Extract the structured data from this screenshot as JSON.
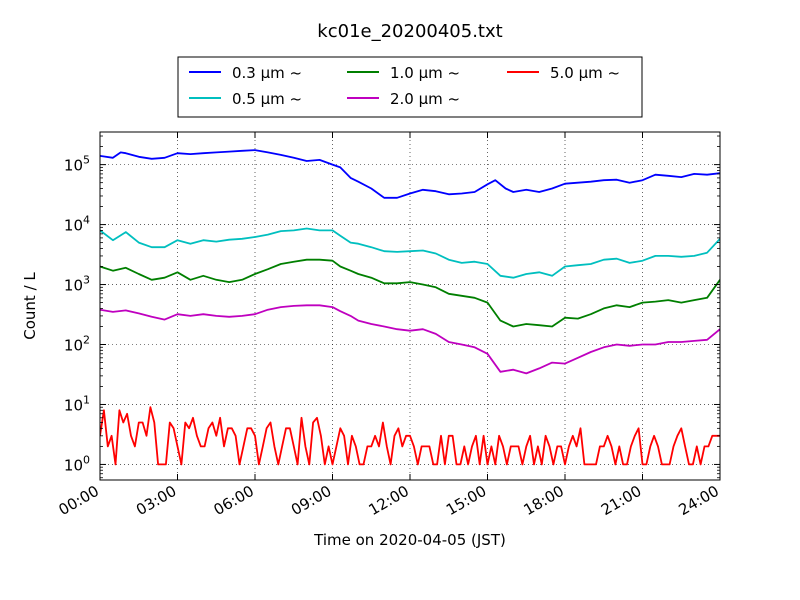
{
  "chart_data": {
    "type": "line",
    "title": "kc01e_20200405.txt",
    "xlabel": "Time on 2020-04-05 (JST)",
    "ylabel": "Count / L",
    "x_unit": "hours",
    "xlim": [
      0,
      24
    ],
    "ylim": [
      0.55,
      350000
    ],
    "yscale": "log",
    "grid": true,
    "legend_position": "top-center",
    "x_ticks": [
      {
        "value": 0,
        "label": "00:00"
      },
      {
        "value": 3,
        "label": "03:00"
      },
      {
        "value": 6,
        "label": "06:00"
      },
      {
        "value": 9,
        "label": "09:00"
      },
      {
        "value": 12,
        "label": "12:00"
      },
      {
        "value": 15,
        "label": "15:00"
      },
      {
        "value": 18,
        "label": "18:00"
      },
      {
        "value": 21,
        "label": "21:00"
      },
      {
        "value": 24,
        "label": "24:00"
      }
    ],
    "y_ticks": [
      {
        "value": 1,
        "base": "10",
        "exp": "0"
      },
      {
        "value": 10,
        "base": "10",
        "exp": "1"
      },
      {
        "value": 100,
        "base": "10",
        "exp": "2"
      },
      {
        "value": 1000,
        "base": "10",
        "exp": "3"
      },
      {
        "value": 10000,
        "base": "10",
        "exp": "4"
      },
      {
        "value": 100000,
        "base": "10",
        "exp": "5"
      }
    ],
    "series": [
      {
        "name": "0.3 μm ~",
        "color": "#0000ff",
        "x": [
          0,
          0.5,
          0.8,
          1,
          1.5,
          2,
          2.5,
          3,
          3.5,
          4,
          4.5,
          5,
          5.5,
          6,
          6.5,
          7,
          7.5,
          8,
          8.5,
          9,
          9.3,
          9.7,
          10,
          10.5,
          11,
          11.5,
          12,
          12.5,
          13,
          13.5,
          14,
          14.5,
          15,
          15.3,
          15.7,
          16,
          16.5,
          17,
          17.5,
          18,
          18.5,
          19,
          19.5,
          20,
          20.5,
          21,
          21.5,
          22,
          22.5,
          23,
          23.5,
          24
        ],
        "values": [
          140000,
          130000,
          160000,
          155000,
          135000,
          125000,
          130000,
          155000,
          150000,
          155000,
          160000,
          165000,
          170000,
          175000,
          160000,
          145000,
          130000,
          115000,
          120000,
          100000,
          90000,
          60000,
          52000,
          40000,
          28000,
          28000,
          33000,
          38000,
          36000,
          32000,
          33000,
          35000,
          47000,
          55000,
          40000,
          35000,
          38000,
          35000,
          40000,
          48000,
          50000,
          52000,
          55000,
          56000,
          50000,
          55000,
          68000,
          65000,
          62000,
          70000,
          68000,
          72000
        ]
      },
      {
        "name": "0.5 μm ~",
        "color": "#00bfbf",
        "x": [
          0,
          0.5,
          1,
          1.5,
          2,
          2.5,
          3,
          3.5,
          4,
          4.5,
          5,
          5.5,
          6,
          6.5,
          7,
          7.5,
          8,
          8.5,
          9,
          9.3,
          9.7,
          10,
          10.5,
          11,
          11.5,
          12,
          12.5,
          13,
          13.5,
          14,
          14.5,
          15,
          15.5,
          16,
          16.5,
          17,
          17.5,
          18,
          18.5,
          19,
          19.5,
          20,
          20.5,
          21,
          21.5,
          22,
          22.5,
          23,
          23.5,
          24
        ],
        "values": [
          8000,
          5500,
          7500,
          5000,
          4200,
          4200,
          5500,
          4800,
          5500,
          5200,
          5600,
          5800,
          6200,
          6800,
          7800,
          8000,
          8600,
          8000,
          8000,
          6500,
          5000,
          4800,
          4200,
          3600,
          3500,
          3600,
          3700,
          3300,
          2600,
          2300,
          2400,
          2200,
          1400,
          1300,
          1500,
          1600,
          1400,
          2000,
          2100,
          2200,
          2600,
          2700,
          2300,
          2500,
          3000,
          3000,
          2900,
          3000,
          3400,
          5800
        ]
      },
      {
        "name": "1.0 μm ~",
        "color": "#007f00",
        "x": [
          0,
          0.5,
          1,
          1.5,
          2,
          2.5,
          3,
          3.5,
          4,
          4.5,
          5,
          5.5,
          6,
          6.5,
          7,
          7.5,
          8,
          8.5,
          9,
          9.3,
          9.7,
          10,
          10.5,
          11,
          11.5,
          12,
          12.5,
          13,
          13.5,
          14,
          14.5,
          15,
          15.5,
          16,
          16.5,
          17,
          17.5,
          18,
          18.5,
          19,
          19.5,
          20,
          20.5,
          21,
          21.5,
          22,
          22.5,
          23,
          23.5,
          24
        ],
        "values": [
          2000,
          1700,
          1900,
          1500,
          1200,
          1300,
          1600,
          1200,
          1400,
          1200,
          1100,
          1200,
          1500,
          1800,
          2200,
          2400,
          2600,
          2600,
          2500,
          2000,
          1700,
          1500,
          1300,
          1050,
          1050,
          1100,
          1000,
          900,
          700,
          650,
          600,
          500,
          250,
          200,
          220,
          210,
          200,
          280,
          270,
          320,
          400,
          450,
          420,
          500,
          520,
          550,
          500,
          550,
          600,
          1200
        ]
      },
      {
        "name": "2.0 μm ~",
        "color": "#bf00bf",
        "x": [
          0,
          0.5,
          1,
          1.5,
          2,
          2.5,
          3,
          3.5,
          4,
          4.5,
          5,
          5.5,
          6,
          6.5,
          7,
          7.5,
          8,
          8.5,
          9,
          9.3,
          9.7,
          10,
          10.5,
          11,
          11.5,
          12,
          12.5,
          13,
          13.5,
          14,
          14.5,
          15,
          15.5,
          16,
          16.5,
          17,
          17.5,
          18,
          18.5,
          19,
          19.5,
          20,
          20.5,
          21,
          21.5,
          22,
          22.5,
          23,
          23.5,
          24
        ],
        "values": [
          380,
          350,
          370,
          330,
          290,
          260,
          320,
          300,
          320,
          300,
          290,
          300,
          320,
          380,
          420,
          440,
          450,
          450,
          420,
          360,
          300,
          250,
          220,
          200,
          180,
          170,
          180,
          150,
          110,
          100,
          90,
          70,
          35,
          38,
          33,
          40,
          50,
          48,
          60,
          75,
          90,
          100,
          95,
          100,
          100,
          110,
          110,
          115,
          120,
          180
        ]
      },
      {
        "name": "5.0 μm ~",
        "color": "#ff0000",
        "x": [
          0,
          0.15,
          0.3,
          0.45,
          0.6,
          0.75,
          0.9,
          1.05,
          1.2,
          1.35,
          1.5,
          1.65,
          1.8,
          1.95,
          2.1,
          2.25,
          2.4,
          2.55,
          2.7,
          2.85,
          3.0,
          3.15,
          3.3,
          3.45,
          3.6,
          3.75,
          3.9,
          4.05,
          4.2,
          4.35,
          4.5,
          4.65,
          4.8,
          4.95,
          5.1,
          5.25,
          5.4,
          5.55,
          5.7,
          5.85,
          6.0,
          6.15,
          6.3,
          6.45,
          6.6,
          6.75,
          6.9,
          7.05,
          7.2,
          7.35,
          7.5,
          7.65,
          7.8,
          7.95,
          8.1,
          8.25,
          8.4,
          8.55,
          8.7,
          8.85,
          9.0,
          9.15,
          9.3,
          9.45,
          9.6,
          9.75,
          9.9,
          10.05,
          10.2,
          10.35,
          10.5,
          10.65,
          10.8,
          10.95,
          11.1,
          11.25,
          11.4,
          11.55,
          11.7,
          11.85,
          12.0,
          12.15,
          12.3,
          12.45,
          12.6,
          12.75,
          12.9,
          13.05,
          13.2,
          13.35,
          13.5,
          13.65,
          13.8,
          13.95,
          14.1,
          14.25,
          14.4,
          14.55,
          14.7,
          14.85,
          15.0,
          15.15,
          15.3,
          15.45,
          15.6,
          15.75,
          15.9,
          16.05,
          16.2,
          16.35,
          16.5,
          16.65,
          16.8,
          16.95,
          17.1,
          17.25,
          17.4,
          17.55,
          17.7,
          17.85,
          18.0,
          18.15,
          18.3,
          18.45,
          18.6,
          18.75,
          18.9,
          19.05,
          19.2,
          19.35,
          19.5,
          19.65,
          19.8,
          19.95,
          20.1,
          20.25,
          20.4,
          20.55,
          20.7,
          20.85,
          21.0,
          21.15,
          21.3,
          21.45,
          21.6,
          21.75,
          21.9,
          22.05,
          22.2,
          22.35,
          22.5,
          22.65,
          22.8,
          22.95,
          23.1,
          23.25,
          23.4,
          23.55,
          23.7,
          23.85,
          24.0
        ],
        "values": [
          3,
          8,
          2,
          3,
          1,
          8,
          5,
          7,
          3,
          2,
          5,
          5,
          3,
          9,
          5,
          1,
          1,
          1,
          5,
          4,
          2,
          1,
          5,
          4,
          6,
          3,
          2,
          2,
          4,
          5,
          3,
          6,
          2,
          4,
          4,
          3,
          1,
          2,
          4,
          4,
          3,
          1,
          2,
          4,
          5,
          2,
          1,
          2,
          4,
          4,
          2,
          1,
          6,
          2,
          1,
          5,
          6,
          3,
          1,
          2,
          1,
          2,
          4,
          3,
          1,
          3,
          2,
          1,
          1,
          2,
          2,
          3,
          2,
          5,
          2,
          1,
          3,
          4,
          2,
          3,
          3,
          2,
          1,
          2,
          2,
          2,
          1,
          1,
          3,
          1,
          3,
          3,
          1,
          1,
          2,
          1,
          2,
          3,
          1,
          3,
          1,
          2,
          1,
          3,
          2,
          1,
          2,
          2,
          2,
          1,
          2,
          3,
          1,
          2,
          1,
          3,
          2,
          1,
          2,
          2,
          1,
          2,
          3,
          2,
          4,
          1,
          1,
          1,
          1,
          2,
          2,
          3,
          2,
          1,
          2,
          1,
          1,
          2,
          3,
          4,
          1,
          1,
          2,
          3,
          2,
          1,
          1,
          1,
          2,
          3,
          4,
          2,
          1,
          1,
          2,
          1,
          2,
          2,
          3,
          3,
          3
        ]
      }
    ]
  }
}
